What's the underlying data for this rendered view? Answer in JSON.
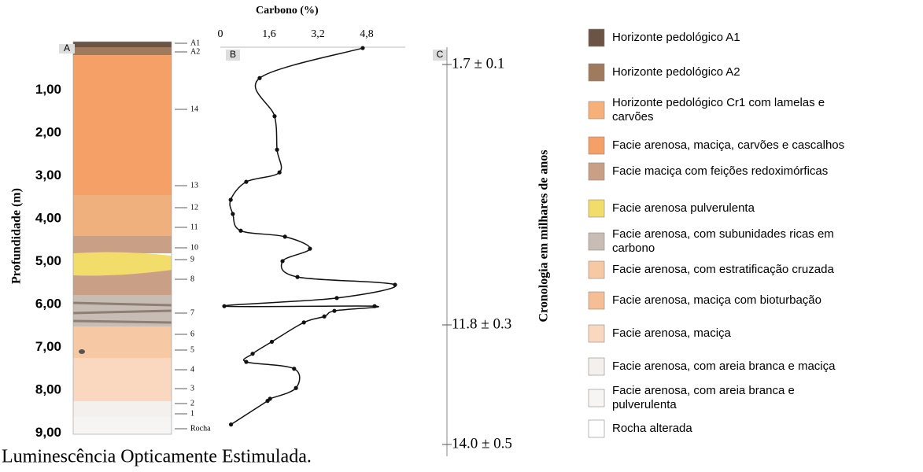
{
  "panels": {
    "a": "A",
    "b": "B",
    "c": "C"
  },
  "depth_axis": {
    "label": "Profundidade (m)",
    "lim": [
      0,
      9
    ],
    "ticks": [
      {
        "value": 1,
        "label": "1,00"
      },
      {
        "value": 2,
        "label": "2,00"
      },
      {
        "value": 3,
        "label": "3,00"
      },
      {
        "value": 4,
        "label": "4,00"
      },
      {
        "value": 5,
        "label": "5,00"
      },
      {
        "value": 6,
        "label": "6,00"
      },
      {
        "value": 7,
        "label": "7,00"
      },
      {
        "value": 8,
        "label": "8,00"
      },
      {
        "value": 9,
        "label": "9,00"
      }
    ]
  },
  "samples": [
    "A1",
    "A2",
    "14",
    "13",
    "12",
    "11",
    "10",
    "9",
    "8",
    "7",
    "6",
    "5",
    "4",
    "3",
    "2",
    "1",
    "Rocha"
  ],
  "carbon_profile": {
    "title": "Carbono (%)",
    "xlim": [
      0,
      6
    ],
    "xticks": [
      0,
      {
        "value": 1.6,
        "label": "1,6"
      },
      {
        "value": 3.2,
        "label": "3,2"
      },
      {
        "value": 4.8,
        "label": "4,8"
      }
    ],
    "depth": [
      0.02,
      0.72,
      1.61,
      2.39,
      2.92,
      3.14,
      3.56,
      3.89,
      4.28,
      4.42,
      4.7,
      4.99,
      5.36,
      5.54,
      5.85,
      6.04,
      6.04,
      6.15,
      6.28,
      6.42,
      6.87,
      7.15,
      7.34,
      7.5,
      7.95,
      8.2,
      8.25,
      8.8
    ],
    "carbon": [
      4.67,
      1.29,
      1.78,
      1.86,
      1.94,
      0.85,
      0.34,
      0.41,
      0.67,
      2.12,
      2.94,
      2.04,
      2.53,
      5.73,
      3.82,
      0.13,
      5.06,
      3.74,
      3.41,
      2.74,
      1.69,
      1.06,
      0.85,
      2.42,
      2.48,
      1.63,
      1.55,
      0.35
    ]
  },
  "chronology": {
    "title": "Cronologia em milhares de anos",
    "ages": [
      "1.7 ± 0.1",
      "11.8 ± 0.3",
      "14.0 ± 0.5"
    ]
  },
  "legend": [
    {
      "label": "Horizonte pedológico A1",
      "color": "#6b5444"
    },
    {
      "label": "Horizonte pedológico A2",
      "color": "#a07a5c"
    },
    {
      "label": "Horizonte pedológico Cr1 com lamelas e carvões",
      "color": "#f7b07a"
    },
    {
      "label": "Facie arenosa, maciça, carvões e cascalhos",
      "color": "#f4a066"
    },
    {
      "label": "Facie maciça com feições redoximórficas",
      "color": "#c9a085"
    },
    {
      "label": "Facie arenosa pulverulenta",
      "color": "#f2dc6a"
    },
    {
      "label": "Facie arenosa, com subunidades ricas em carbono",
      "color": "#c8bdb4"
    },
    {
      "label": "Facie arenosa, com estratificação cruzada",
      "color": "#f6c8a4"
    },
    {
      "label": "Facie arenosa, maciça com bioturbação",
      "color": "#f5be94"
    },
    {
      "label": "Facie arenosa, maciça",
      "color": "#fad8c0"
    },
    {
      "label": "Facie arenosa, com areia branca e maciça",
      "color": "#f4f0ee"
    },
    {
      "label": "Facie arenosa, com areia branca e pulverulenta",
      "color": "#f7f5f4"
    },
    {
      "label": "Rocha alterada",
      "color": "#ffffff"
    }
  ],
  "caption": "Luminescência Opticamente Estimulada."
}
